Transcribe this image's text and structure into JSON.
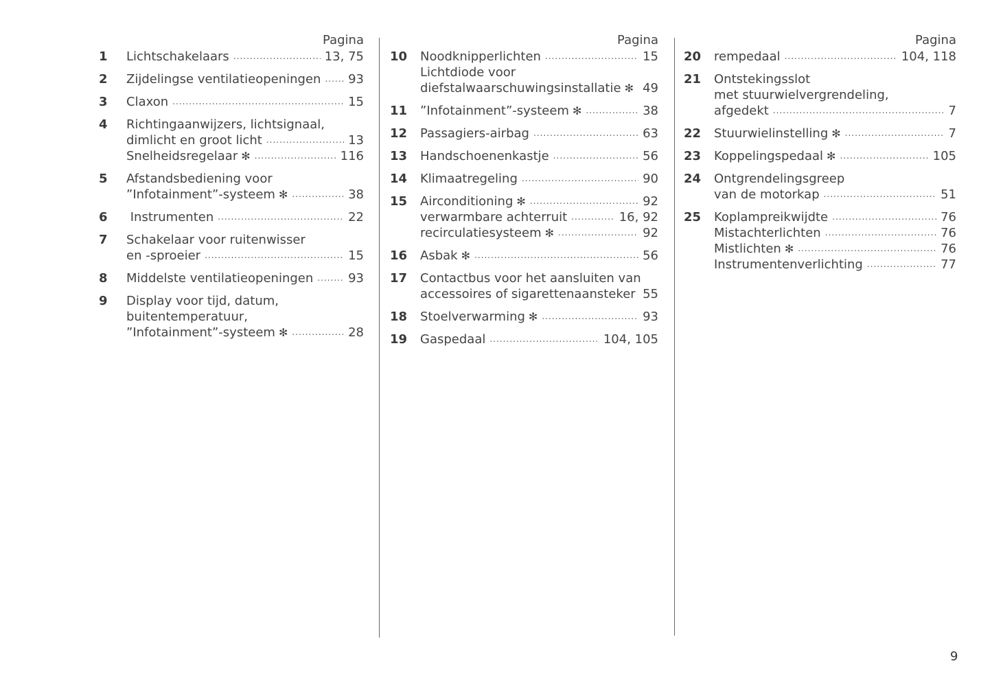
{
  "page_header": "Pagina",
  "page_number": "9",
  "star_icon": "✻",
  "columns": [
    {
      "header": "Pagina",
      "entries": [
        {
          "num": "1",
          "lines": [
            {
              "text": "Lichtschakelaars",
              "page": "13, 75"
            }
          ]
        },
        {
          "num": "2",
          "lines": [
            {
              "text": "Zijdelingse ventilatieopeningen",
              "page": "93"
            }
          ]
        },
        {
          "num": "3",
          "lines": [
            {
              "text": "Claxon",
              "page": "15"
            }
          ]
        },
        {
          "num": "4",
          "lines": [
            {
              "text": "Richtingaanwijzers, lichtsignaal,"
            },
            {
              "text": "dimlicht en groot licht",
              "page": "13"
            },
            {
              "text": "Snelheidsregelaar",
              "star": true,
              "page": "116"
            }
          ]
        },
        {
          "num": "5",
          "lines": [
            {
              "text": "Afstandsbediening voor"
            },
            {
              "text": "”Infotainment”-systeem",
              "star": true,
              "page": "38"
            }
          ]
        },
        {
          "num": "6",
          "lines": [
            {
              "text": " Instrumenten",
              "page": "22"
            }
          ]
        },
        {
          "num": "7",
          "lines": [
            {
              "text": "Schakelaar voor ruitenwisser"
            },
            {
              "text": "en -sproeier",
              "page": "15"
            }
          ]
        },
        {
          "num": "8",
          "lines": [
            {
              "text": "Middelste ventilatieopeningen",
              "page": "93"
            }
          ]
        },
        {
          "num": "9",
          "lines": [
            {
              "text": "Display voor tijd, datum,"
            },
            {
              "text": "buitentemperatuur,"
            },
            {
              "text": "”Infotainment”-systeem",
              "star": true,
              "page": "28"
            }
          ]
        }
      ]
    },
    {
      "header": "Pagina",
      "entries": [
        {
          "num": "10",
          "lines": [
            {
              "text": "Noodknipperlichten",
              "page": "15"
            },
            {
              "text": "Lichtdiode voor"
            },
            {
              "text": "diefstalwaarschuwingsinstallatie",
              "star": true,
              "page": "49",
              "noleader": true
            }
          ]
        },
        {
          "num": "11",
          "lines": [
            {
              "text": "”Infotainment”-systeem",
              "star": true,
              "page": "38"
            }
          ]
        },
        {
          "num": "12",
          "lines": [
            {
              "text": "Passagiers-airbag",
              "page": "63"
            }
          ]
        },
        {
          "num": "13",
          "lines": [
            {
              "text": "Handschoenenkastje",
              "page": "56"
            }
          ]
        },
        {
          "num": "14",
          "lines": [
            {
              "text": "Klimaatregeling",
              "page": "90"
            }
          ]
        },
        {
          "num": "15",
          "lines": [
            {
              "text": "Airconditioning",
              "star": true,
              "page": "92"
            },
            {
              "text": "verwarmbare achterruit",
              "page": "16, 92"
            },
            {
              "text": "recirculatiesysteem",
              "star": true,
              "page": "92"
            }
          ]
        },
        {
          "num": "16",
          "lines": [
            {
              "text": "Asbak",
              "star": true,
              "page": "56"
            }
          ]
        },
        {
          "num": "17",
          "lines": [
            {
              "text": "Contactbus voor het aansluiten van"
            },
            {
              "text": "accessoires of sigarettenaansteker",
              "page": "55",
              "noleader": true
            }
          ]
        },
        {
          "num": "18",
          "lines": [
            {
              "text": "Stoelverwarming",
              "star": true,
              "page": "93"
            }
          ]
        },
        {
          "num": "19",
          "lines": [
            {
              "text": "Gaspedaal",
              "page": "104, 105"
            }
          ]
        }
      ]
    },
    {
      "header": "Pagina",
      "entries": [
        {
          "num": "20",
          "lines": [
            {
              "text": "rempedaal",
              "page": "104, 118"
            }
          ]
        },
        {
          "num": "21",
          "lines": [
            {
              "text": "Ontstekingsslot"
            },
            {
              "text": "met stuurwielvergrendeling,"
            },
            {
              "text": "afgedekt",
              "page": "7"
            }
          ]
        },
        {
          "num": "22",
          "lines": [
            {
              "text": "Stuurwielinstelling",
              "star": true,
              "page": "7"
            }
          ]
        },
        {
          "num": "23",
          "lines": [
            {
              "text": "Koppelingspedaal",
              "star": true,
              "page": "105"
            }
          ]
        },
        {
          "num": "24",
          "lines": [
            {
              "text": "Ontgrendelingsgreep"
            },
            {
              "text": "van de motorkap",
              "page": "51"
            }
          ]
        },
        {
          "num": "25",
          "lines": [
            {
              "text": "Koplampreikwijdte",
              "page": "76"
            },
            {
              "text": "Mistachterlichten",
              "page": "76"
            },
            {
              "text": "Mistlichten",
              "star": true,
              "page": "76"
            },
            {
              "text": "Instrumentenverlichting",
              "page": "77"
            }
          ]
        }
      ]
    }
  ]
}
